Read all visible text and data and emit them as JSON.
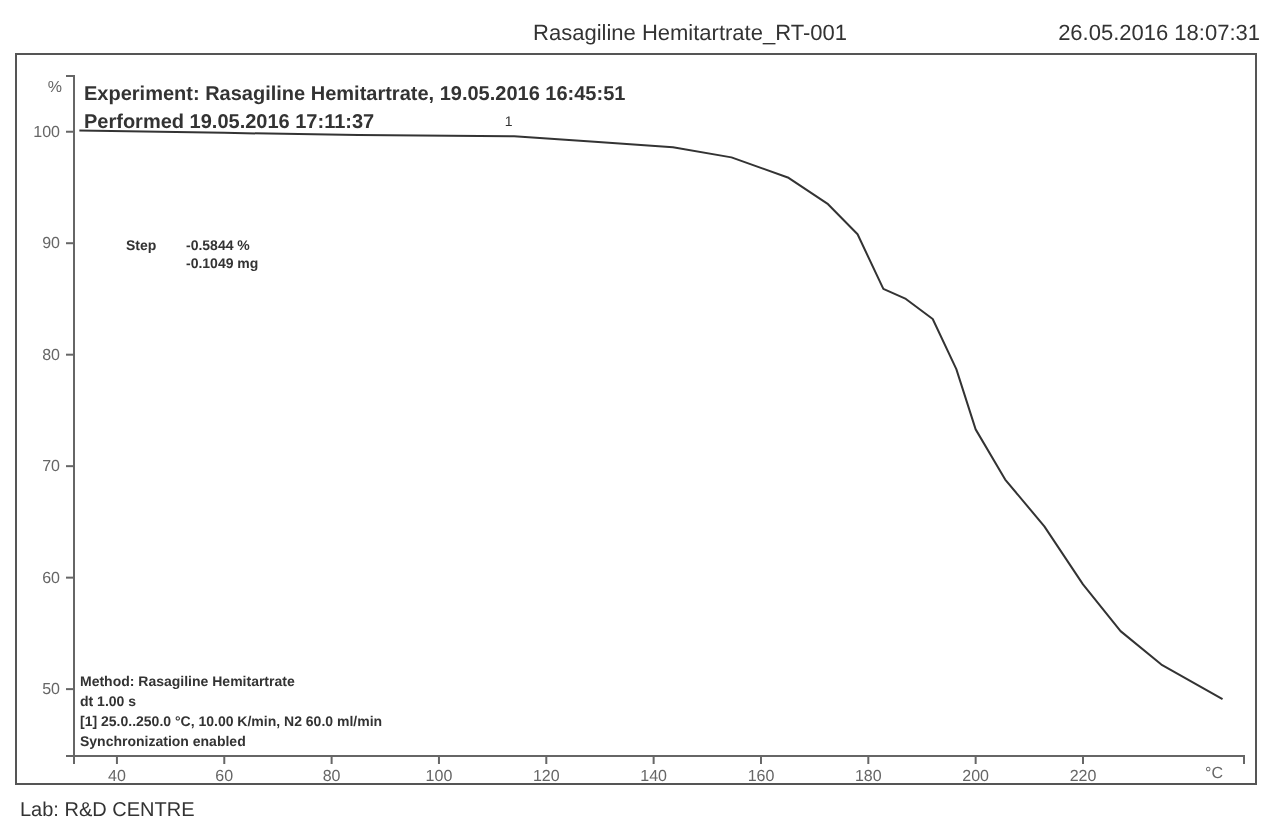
{
  "chart_data": {
    "type": "line",
    "title": "Rasagiline Hemitartrate_RT-001",
    "subtitle": "26.05.2016 18:07:31",
    "xlabel": "°C",
    "ylabel": "%",
    "x": [
      33,
      60,
      85,
      114,
      129,
      143.6,
      154.5,
      165,
      172.5,
      178,
      182.8,
      187,
      192,
      196.4,
      200,
      205.5,
      212.8,
      220,
      227,
      234.6,
      246
    ],
    "series": [
      {
        "color": "#333333",
        "values": [
          100.1,
          99.9,
          99.7,
          99.6,
          99.1,
          98.6,
          97.7,
          95.9,
          93.5,
          90.8,
          85.9,
          85.0,
          83.2,
          78.7,
          73.3,
          68.8,
          64.6,
          59.4,
          55.2,
          52.2,
          49.1
        ]
      }
    ],
    "xlim": [
      32,
      250
    ],
    "xticks": [
      40,
      60,
      80,
      100,
      120,
      140,
      160,
      180,
      200,
      220
    ],
    "ylim": [
      44,
      105
    ],
    "yticks": [
      50,
      60,
      70,
      80,
      90,
      100
    ],
    "annotations": [
      "Experiment: Rasagiline Hemitartrate, 19.05.2016 16:45:51",
      "Performed 19.05.2016 17:11:37",
      "Step",
      "-0.5844 %",
      "-0.1049 mg",
      {
        "text": "1",
        "x": 113,
        "y": 100
      },
      "Method: Rasagiline Hemitartrate",
      "dt 1.00 s",
      "[1] 25.0..250.0 °C, 10.00 K/min, N2 60.0 ml/min",
      "Synchronization enabled",
      "Lab: R&D CENTRE"
    ],
    "marker": "none",
    "line_style": "solid"
  }
}
